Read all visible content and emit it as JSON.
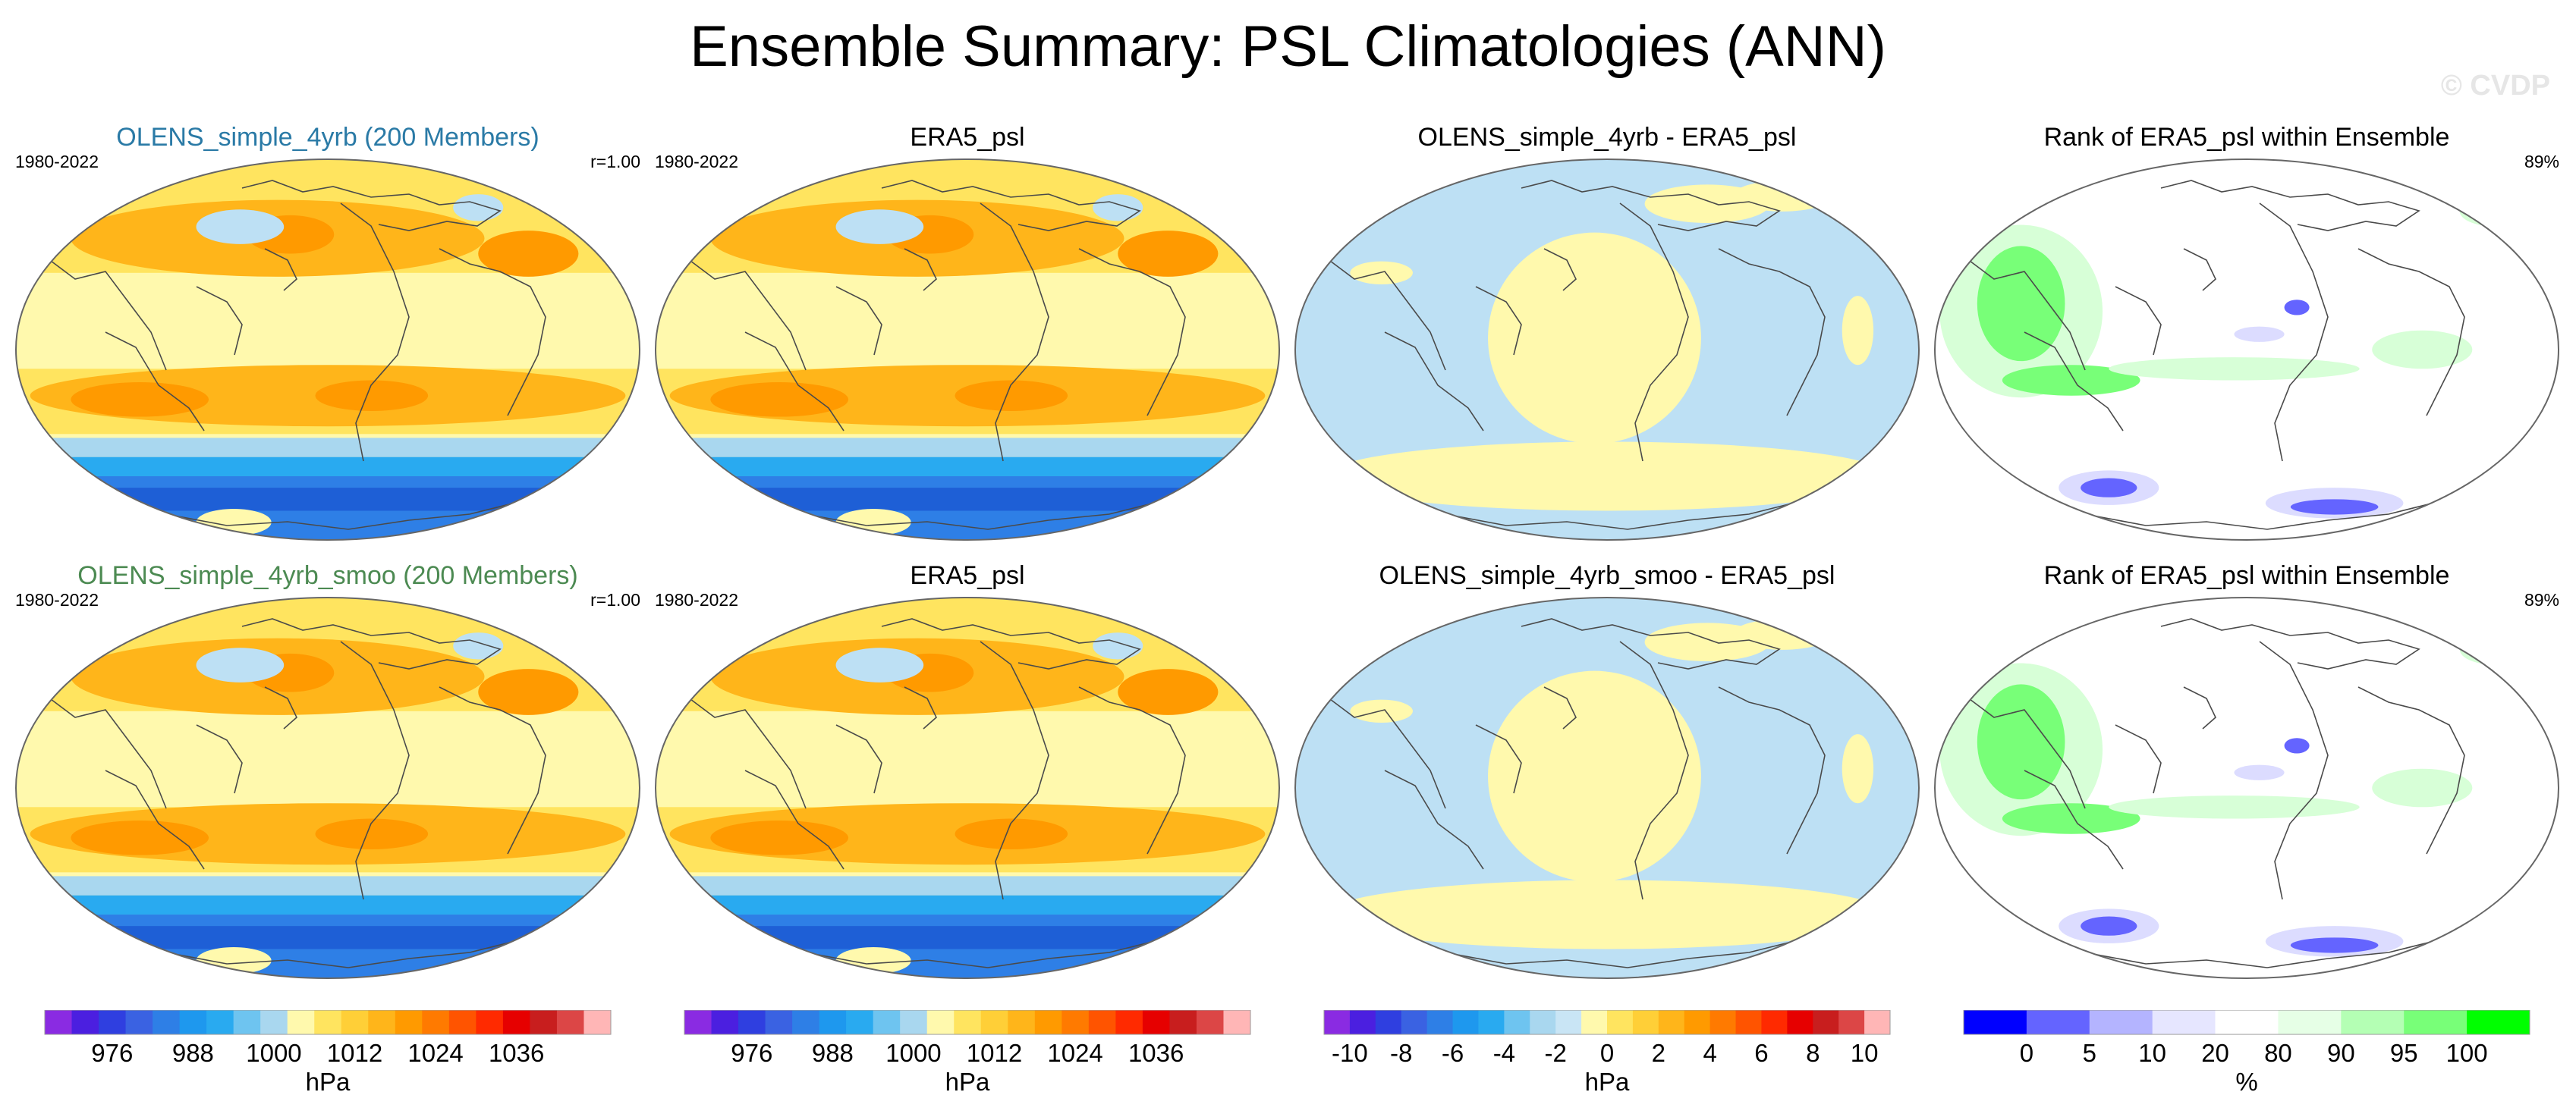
{
  "title": "Ensemble Summary: PSL Climatologies (ANN)",
  "watermark": "© CVDP",
  "rows": [
    {
      "panels": [
        {
          "title": "OLENS_simple_4yrb (200 Members)",
          "title_color": "#2a7aa6",
          "period": "1980-2022",
          "right_label": "r=1.00",
          "kind": "psl"
        },
        {
          "title": "ERA5_psl",
          "title_color": "#000000",
          "period": "1980-2022",
          "right_label": "",
          "kind": "psl"
        },
        {
          "title": "OLENS_simple_4yrb - ERA5_psl",
          "title_color": "#000000",
          "period": "",
          "right_label": "",
          "kind": "diff"
        },
        {
          "title": "Rank of ERA5_psl within Ensemble",
          "title_color": "#000000",
          "period": "",
          "right_label": "89%",
          "kind": "rank"
        }
      ]
    },
    {
      "panels": [
        {
          "title": "OLENS_simple_4yrb_smoo (200 Members)",
          "title_color": "#4c8a52",
          "period": "1980-2022",
          "right_label": "r=1.00",
          "kind": "psl"
        },
        {
          "title": "ERA5_psl",
          "title_color": "#000000",
          "period": "1980-2022",
          "right_label": "",
          "kind": "psl"
        },
        {
          "title": "OLENS_simple_4yrb_smoo - ERA5_psl",
          "title_color": "#000000",
          "period": "",
          "right_label": "",
          "kind": "diff"
        },
        {
          "title": "Rank of ERA5_psl within Ensemble",
          "title_color": "#000000",
          "period": "",
          "right_label": "89%",
          "kind": "rank"
        }
      ]
    }
  ],
  "chart_data": [
    {
      "type": "heatmap",
      "name": "psl-colorbar",
      "unit_label": "hPa",
      "tick_labels": [
        "976",
        "988",
        "1000",
        "1012",
        "1024",
        "1036"
      ],
      "tick_positions": [
        2.5,
        5.5,
        8.5,
        11.5,
        14.5,
        17.5
      ],
      "colors": [
        "#8a2be2",
        "#4b1fe0",
        "#2f3fe0",
        "#3a62e2",
        "#2e7fe6",
        "#1e98ee",
        "#29aaf0",
        "#6ec4f0",
        "#a9d7ef",
        "#fff9ad",
        "#ffe45f",
        "#ffcf37",
        "#ffb51a",
        "#ff9a00",
        "#ff7a00",
        "#ff5400",
        "#ff2a00",
        "#e60000",
        "#c81e1e",
        "#dc4646",
        "#ffb6b6"
      ]
    },
    {
      "type": "heatmap",
      "name": "diff-colorbar",
      "unit_label": "hPa",
      "tick_labels": [
        "-10",
        "-8",
        "-6",
        "-4",
        "-2",
        "0",
        "2",
        "4",
        "6",
        "8",
        "10"
      ],
      "tick_positions": [
        1,
        3,
        5,
        7,
        9,
        11,
        13,
        15,
        17,
        19,
        21
      ],
      "colors": [
        "#8a2be2",
        "#4b1fe0",
        "#2f3fe0",
        "#3a62e2",
        "#2e7fe6",
        "#1e98ee",
        "#29aaf0",
        "#6ec4f0",
        "#a9d7ef",
        "#c9e5f5",
        "#fff9ad",
        "#ffe45f",
        "#ffcf37",
        "#ffb51a",
        "#ff9a00",
        "#ff7a00",
        "#ff5400",
        "#ff2a00",
        "#e60000",
        "#c81e1e",
        "#dc4646",
        "#ffb6b6"
      ]
    },
    {
      "type": "heatmap",
      "name": "rank-colorbar",
      "unit_label": "%",
      "tick_labels": [
        "0",
        "5",
        "10",
        "20",
        "80",
        "90",
        "95",
        "100"
      ],
      "tick_positions": [
        1,
        2,
        3,
        4,
        5,
        6,
        7,
        8
      ],
      "colors": [
        "#0000ff",
        "#6464ff",
        "#b4b4ff",
        "#e6e6ff",
        "#ffffff",
        "#e6ffe6",
        "#b4ffb4",
        "#78ff78",
        "#00ff00"
      ]
    }
  ],
  "palette": {
    "ocean_light": "#fff9ad",
    "yellow": "#ffe45f",
    "orange": "#ffb51a",
    "deep_orange": "#ff9a00",
    "light_blue": "#bde0f4",
    "blue": "#2e7fe6",
    "dark_blue": "#1e5fd6",
    "rank_green": "#78ff78",
    "rank_lightgreen": "#d7ffd7",
    "rank_blue": "#6464ff",
    "rank_lightblue": "#dcdcff"
  }
}
